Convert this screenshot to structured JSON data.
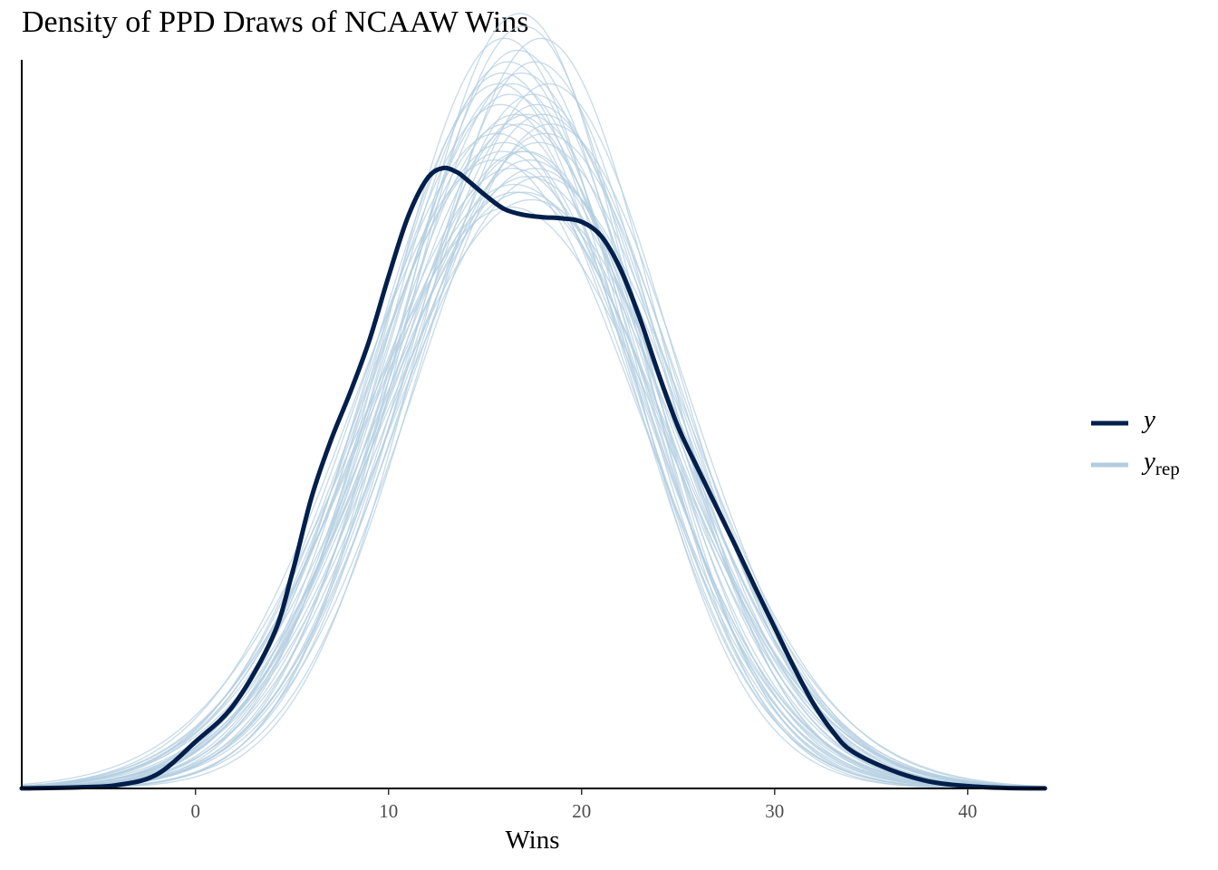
{
  "title": "Density of PPD Draws of NCAAW Wins",
  "chart_data": {
    "type": "line",
    "title": "Density of PPD Draws of NCAAW Wins",
    "xlabel": "Wins",
    "ylabel": "",
    "xlim": [
      -9,
      44
    ],
    "ylim": [
      0,
      0.0625
    ],
    "xticks": [
      0,
      10,
      20,
      30,
      40
    ],
    "xtick_labels": [
      "0",
      "10",
      "20",
      "30",
      "40"
    ],
    "y_axis_ticks_shown": false,
    "grid": false,
    "legend_position": "right",
    "legend": [
      {
        "label": "y",
        "color": "#011f4b"
      },
      {
        "label": "y",
        "subscript": "rep",
        "color": "#b3cde0"
      }
    ],
    "series": [
      {
        "name": "y",
        "color": "#011f4b",
        "x": [
          -9,
          -6,
          -4,
          -2,
          0,
          2,
          4,
          5,
          6,
          7,
          8,
          9,
          10,
          11,
          12,
          12.8,
          13.5,
          14,
          15,
          16,
          17,
          18,
          19,
          20,
          21,
          22,
          23,
          24,
          25,
          26,
          27,
          28,
          29,
          30,
          31,
          32,
          33,
          34,
          36,
          38,
          40,
          42,
          44
        ],
        "y": [
          1e-05,
          0.0001,
          0.0003,
          0.0012,
          0.004,
          0.0072,
          0.013,
          0.0184,
          0.0249,
          0.0298,
          0.0339,
          0.0384,
          0.0439,
          0.049,
          0.0523,
          0.0532,
          0.0529,
          0.0523,
          0.0509,
          0.0497,
          0.0492,
          0.049,
          0.0489,
          0.0486,
          0.0474,
          0.0446,
          0.0404,
          0.0355,
          0.031,
          0.0275,
          0.0241,
          0.0207,
          0.0172,
          0.0138,
          0.0104,
          0.0073,
          0.0049,
          0.0032,
          0.0016,
          0.0006,
          0.0002,
          4e-05,
          1e-05
        ]
      },
      {
        "name": "y_rep",
        "color": "#b3cde0",
        "draws": [
          {
            "mu": 16.8,
            "sigma": 7.0
          },
          {
            "mu": 17.6,
            "sigma": 6.4
          },
          {
            "mu": 15.9,
            "sigma": 7.3
          },
          {
            "mu": 16.3,
            "sigma": 6.7
          },
          {
            "mu": 17.9,
            "sigma": 7.6
          },
          {
            "mu": 16.0,
            "sigma": 6.2
          },
          {
            "mu": 17.2,
            "sigma": 6.9
          },
          {
            "mu": 16.6,
            "sigma": 7.8
          },
          {
            "mu": 18.3,
            "sigma": 6.6
          },
          {
            "mu": 15.6,
            "sigma": 7.1
          },
          {
            "mu": 17.0,
            "sigma": 6.1
          },
          {
            "mu": 16.4,
            "sigma": 7.5
          },
          {
            "mu": 17.8,
            "sigma": 7.2
          },
          {
            "mu": 15.8,
            "sigma": 6.8
          },
          {
            "mu": 16.9,
            "sigma": 6.5
          },
          {
            "mu": 17.4,
            "sigma": 7.9
          },
          {
            "mu": 16.1,
            "sigma": 7.0
          },
          {
            "mu": 18.0,
            "sigma": 6.9
          },
          {
            "mu": 16.7,
            "sigma": 6.3
          },
          {
            "mu": 17.3,
            "sigma": 7.4
          },
          {
            "mu": 15.7,
            "sigma": 6.6
          },
          {
            "mu": 16.5,
            "sigma": 7.7
          },
          {
            "mu": 17.7,
            "sigma": 6.8
          },
          {
            "mu": 16.2,
            "sigma": 6.4
          },
          {
            "mu": 17.1,
            "sigma": 7.3
          },
          {
            "mu": 18.4,
            "sigma": 7.0
          },
          {
            "mu": 15.5,
            "sigma": 7.4
          },
          {
            "mu": 16.8,
            "sigma": 6.0
          },
          {
            "mu": 17.5,
            "sigma": 6.7
          },
          {
            "mu": 16.3,
            "sigma": 8.0
          },
          {
            "mu": 17.9,
            "sigma": 6.2
          },
          {
            "mu": 16.0,
            "sigma": 7.2
          },
          {
            "mu": 17.2,
            "sigma": 7.6
          },
          {
            "mu": 16.6,
            "sigma": 6.9
          },
          {
            "mu": 18.1,
            "sigma": 7.1
          },
          {
            "mu": 15.9,
            "sigma": 6.5
          },
          {
            "mu": 17.0,
            "sigma": 7.8
          },
          {
            "mu": 16.4,
            "sigma": 6.6
          },
          {
            "mu": 17.6,
            "sigma": 7.5
          },
          {
            "mu": 16.9,
            "sigma": 7.3
          }
        ]
      }
    ]
  }
}
